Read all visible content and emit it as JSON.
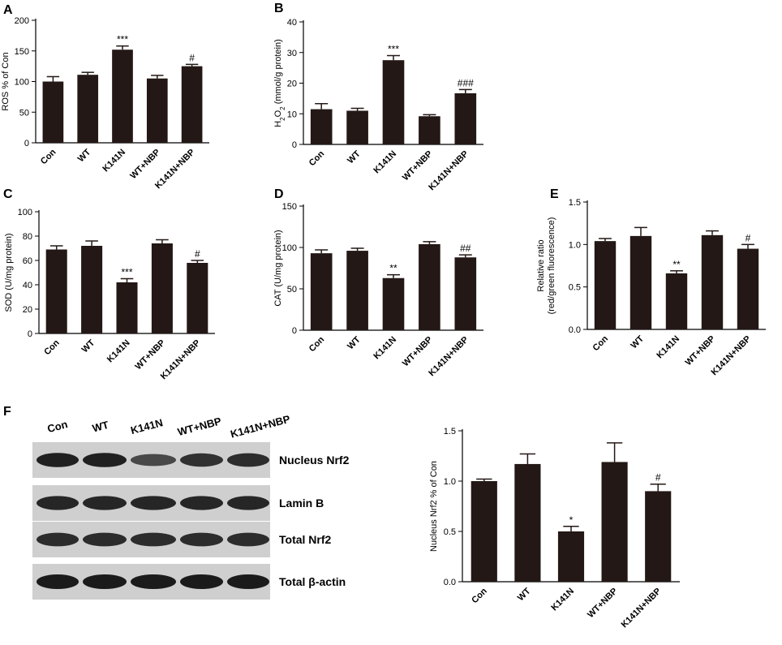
{
  "chart_data": [
    {
      "panel": "A",
      "type": "bar",
      "categories": [
        "Con",
        "WT",
        "K141N",
        "WT+NBP",
        "K141N+NBP"
      ],
      "values": [
        100,
        111,
        152,
        105,
        125
      ],
      "errors": [
        8,
        4,
        6,
        5,
        3
      ],
      "significance": [
        "",
        "",
        "***",
        "",
        "#"
      ],
      "ylabel": "ROS % of Con",
      "ylim": [
        0,
        200
      ],
      "yticks": [
        0,
        50,
        100,
        150,
        200
      ]
    },
    {
      "panel": "B",
      "type": "bar",
      "categories": [
        "Con",
        "WT",
        "K141N",
        "WT+NBP",
        "K141N+NBP"
      ],
      "values": [
        11.5,
        11,
        27.5,
        9.2,
        16.7
      ],
      "errors": [
        1.8,
        0.8,
        1.5,
        0.5,
        1.2
      ],
      "significance": [
        "",
        "",
        "***",
        "",
        "###"
      ],
      "ylabel_parts": [
        "H",
        "2",
        "O",
        "2",
        " (mmol/g protein)"
      ],
      "ylim": [
        0,
        40
      ],
      "yticks": [
        0,
        10,
        20,
        30,
        40
      ]
    },
    {
      "panel": "C",
      "type": "bar",
      "categories": [
        "Con",
        "WT",
        "K141N",
        "WT+NBP",
        "K141N+NBP"
      ],
      "values": [
        69,
        72,
        42,
        74,
        58
      ],
      "errors": [
        3,
        4,
        3,
        3,
        2
      ],
      "significance": [
        "",
        "",
        "***",
        "",
        "#"
      ],
      "ylabel": "SOD (U/mg protein)",
      "ylim": [
        0,
        100
      ],
      "yticks": [
        0,
        20,
        40,
        60,
        80,
        100
      ]
    },
    {
      "panel": "D",
      "type": "bar",
      "categories": [
        "Con",
        "WT",
        "K141N",
        "WT+NBP",
        "K141N+NBP"
      ],
      "values": [
        93,
        96,
        63,
        104,
        88
      ],
      "errors": [
        4,
        3,
        4,
        3,
        3
      ],
      "significance": [
        "",
        "",
        "**",
        "",
        "##"
      ],
      "ylabel": "CAT (U/mg protein)",
      "ylim": [
        0,
        150
      ],
      "yticks": [
        0,
        50,
        100,
        150
      ]
    },
    {
      "panel": "E",
      "type": "bar",
      "categories": [
        "Con",
        "WT",
        "K141N",
        "WT+NBP",
        "K141N+NBP"
      ],
      "values": [
        1.04,
        1.1,
        0.66,
        1.11,
        0.95
      ],
      "errors": [
        0.03,
        0.1,
        0.03,
        0.05,
        0.05
      ],
      "significance": [
        "",
        "",
        "**",
        "",
        "#"
      ],
      "ylabel_lines": [
        "Relative ratio",
        "(red/green fluorescence)"
      ],
      "ylim": [
        0,
        1.5
      ],
      "yticks": [
        "0.0",
        "0.5",
        "1.0",
        "1.5"
      ]
    },
    {
      "panel": "F",
      "type": "bar",
      "categories": [
        "Con",
        "WT",
        "K141N",
        "WT+NBP",
        "K141N+NBP"
      ],
      "values": [
        1.0,
        1.17,
        0.5,
        1.19,
        0.9
      ],
      "errors": [
        0.02,
        0.1,
        0.05,
        0.19,
        0.07
      ],
      "significance": [
        "",
        "",
        "*",
        "",
        "#"
      ],
      "ylabel": "Nucleus Nrf2 % of Con",
      "ylim": [
        0,
        1.5
      ],
      "yticks": [
        "0.0",
        "0.5",
        "1.0",
        "1.5"
      ]
    }
  ],
  "blot": {
    "lanes": [
      "Con",
      "WT",
      "K141N",
      "WT+NBP",
      "K141N+NBP"
    ],
    "rows": [
      {
        "label": "Nucleus Nrf2",
        "intensity": [
          0.95,
          0.95,
          0.6,
          0.8,
          0.85
        ]
      },
      {
        "label": "Lamin B",
        "intensity": [
          0.9,
          0.9,
          0.9,
          0.9,
          0.9
        ]
      },
      {
        "label": "Total Nrf2",
        "intensity": [
          0.85,
          0.85,
          0.85,
          0.85,
          0.85
        ]
      },
      {
        "label": "Total β-actin",
        "intensity": [
          1.0,
          1.0,
          1.0,
          1.0,
          1.0
        ]
      }
    ]
  },
  "colors": {
    "bar": "#231815",
    "axis": "#000000",
    "blot_bg": "#cfcfcf",
    "band": "#111111"
  }
}
